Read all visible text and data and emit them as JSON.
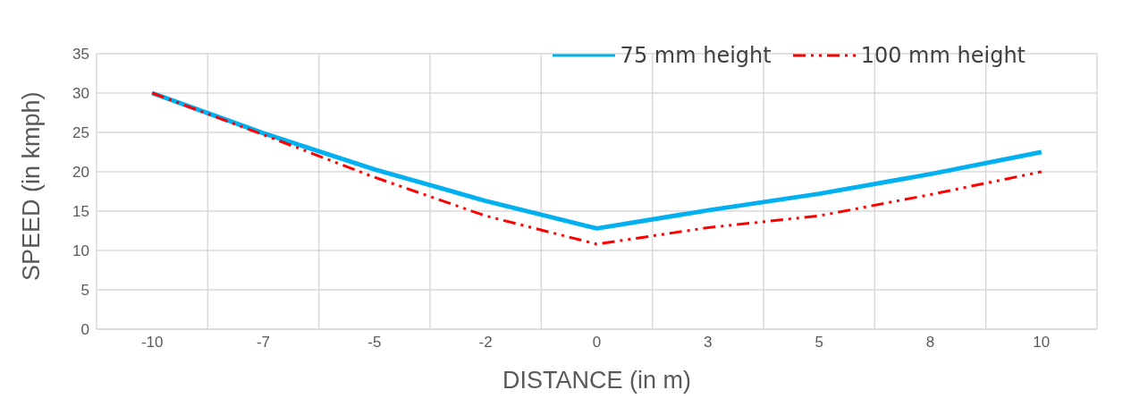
{
  "chart_data": {
    "type": "line",
    "xlabel": "DISTANCE (in m)",
    "ylabel": "SPEED (in kmph)",
    "categories": [
      "-10",
      "-7",
      "-5",
      "-2",
      "0",
      "3",
      "5",
      "8",
      "10"
    ],
    "series": [
      {
        "name": "75 mm height",
        "color": "#00b0f0",
        "line_style": "solid",
        "values": [
          30,
          24.9,
          20.3,
          16.3,
          12.8,
          15.1,
          17.2,
          19.7,
          22.5
        ]
      },
      {
        "name": "100 mm height",
        "color": "#ff0000",
        "line_style": "dashed",
        "values": [
          30,
          24.7,
          19.3,
          14.4,
          10.8,
          12.9,
          14.4,
          17.1,
          20
        ]
      }
    ],
    "ylim": [
      0,
      35
    ],
    "yticks": [
      0,
      5,
      10,
      15,
      20,
      25,
      30,
      35
    ],
    "grid": true,
    "legend": "top right",
    "marker": "none"
  }
}
